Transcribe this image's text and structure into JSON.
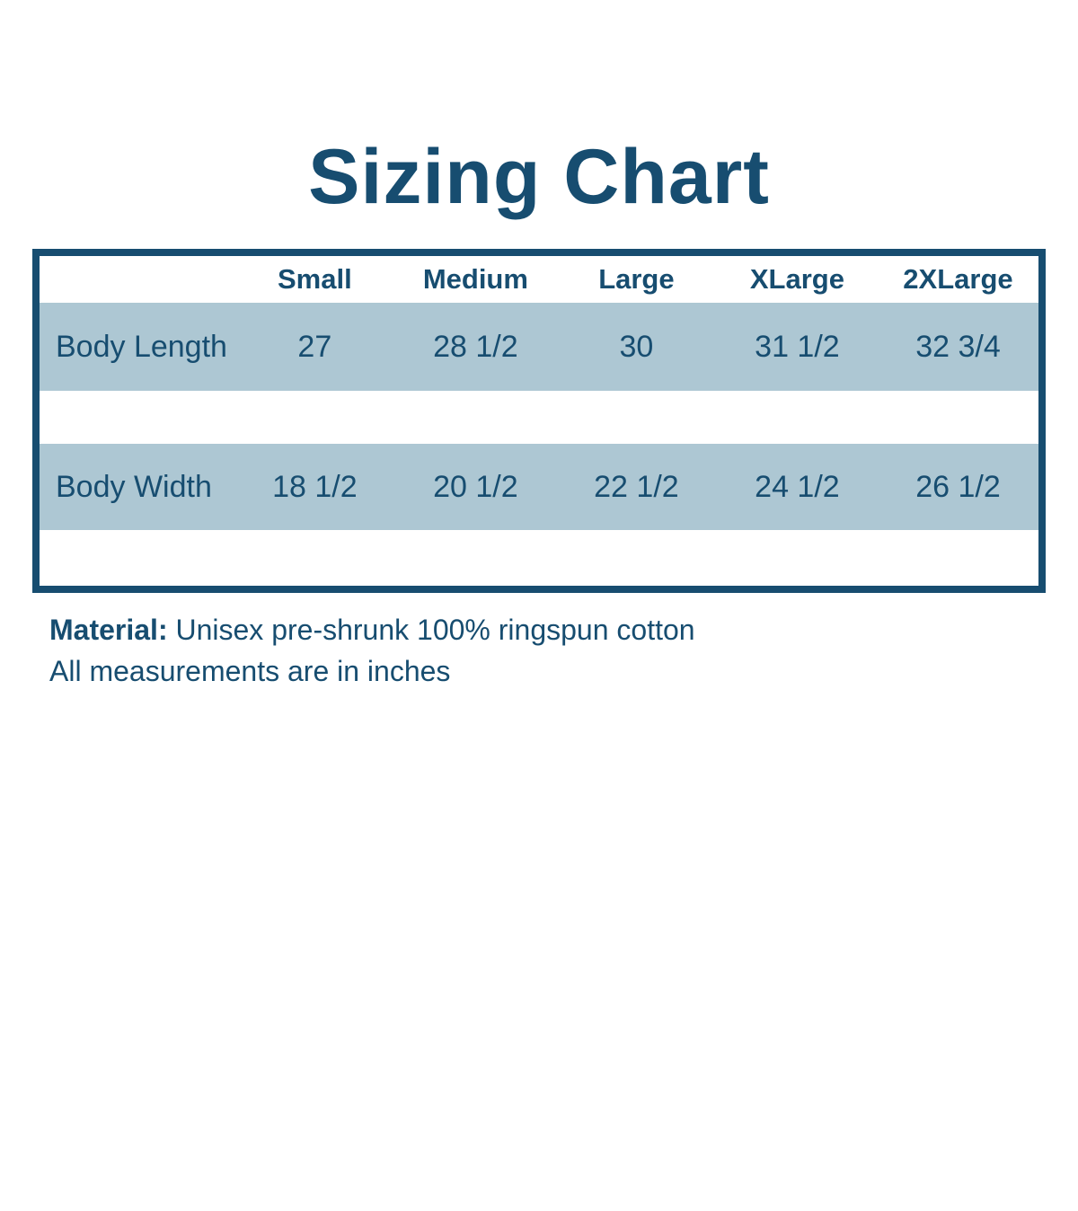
{
  "title": "Sizing Chart",
  "table": {
    "columns": [
      "Small",
      "Medium",
      "Large",
      "XLarge",
      "2XLarge"
    ],
    "rows": [
      {
        "label": "Body Length",
        "values": [
          "27",
          "28 1/2",
          "30",
          "31 1/2",
          "32 3/4"
        ]
      },
      {
        "label": "Body Width",
        "values": [
          "18 1/2",
          "20 1/2",
          "22 1/2",
          "24 1/2",
          "26 1/2"
        ]
      }
    ]
  },
  "footer": {
    "material_label": "Material:",
    "material_value": "Unisex pre-shrunk 100% ringspun cotton",
    "note": "All measurements are in inches"
  },
  "colors": {
    "ink": "#174d70",
    "band": "#adc7d3",
    "background": "#ffffff"
  },
  "chart_data": {
    "type": "table",
    "title": "Sizing Chart",
    "categories": [
      "Small",
      "Medium",
      "Large",
      "XLarge",
      "2XLarge"
    ],
    "series": [
      {
        "name": "Body Length",
        "values": [
          27,
          28.5,
          30,
          31.5,
          32.75
        ]
      },
      {
        "name": "Body Width",
        "values": [
          18.5,
          20.5,
          22.5,
          24.5,
          26.5
        ]
      }
    ],
    "units": "inches",
    "notes": [
      "Material: Unisex pre-shrunk 100% ringspun cotton",
      "All measurements are in inches"
    ]
  }
}
